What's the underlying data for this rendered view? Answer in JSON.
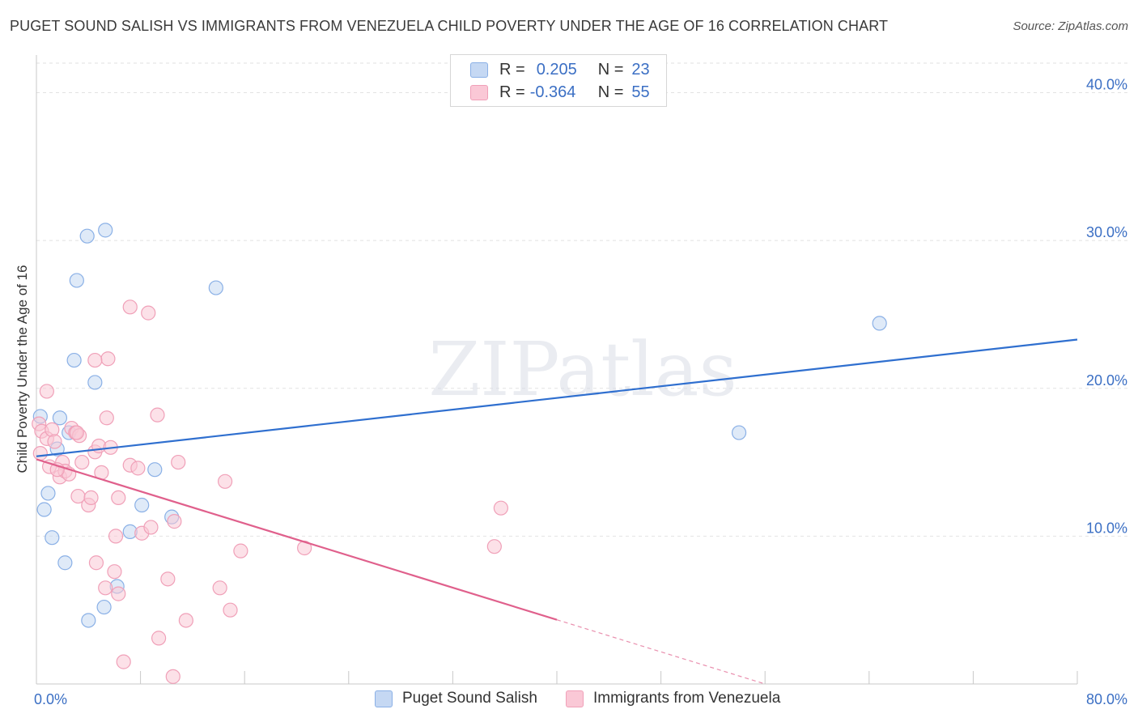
{
  "chart_data": {
    "type": "scatter",
    "title": "PUGET SOUND SALISH VS IMMIGRANTS FROM VENEZUELA CHILD POVERTY UNDER THE AGE OF 16 CORRELATION CHART",
    "source": "Source: ZipAtlas.com",
    "ylabel": "Child Poverty Under the Age of 16",
    "xlabel": "",
    "xlim": [
      0,
      80
    ],
    "ylim": [
      0,
      42
    ],
    "x_tick_labels": [
      "0.0%",
      "80.0%"
    ],
    "y_ticks": [
      10,
      20,
      30,
      40
    ],
    "y_tick_labels": [
      "10.0%",
      "20.0%",
      "30.0%",
      "40.0%"
    ],
    "watermark": "ZIPatlas",
    "legend": {
      "rows": [
        {
          "r_label": "R =",
          "r_value": "0.205",
          "n_label": "N =",
          "n_value": "23"
        },
        {
          "r_label": "R =",
          "r_value": "-0.364",
          "n_label": "N =",
          "n_value": "55"
        }
      ]
    },
    "series": [
      {
        "name": "Puget Sound Salish",
        "color": "#8ab0e6",
        "fill": "#c5d8f3",
        "line_color": "#2f6fcf",
        "trend": {
          "x0": 0,
          "y0": 15.4,
          "x1": 80,
          "y1": 23.3,
          "solid_until": 80
        },
        "points": [
          [
            0.3,
            18.1
          ],
          [
            1.8,
            18.0
          ],
          [
            2.5,
            17.0
          ],
          [
            1.6,
            15.9
          ],
          [
            0.9,
            12.9
          ],
          [
            0.6,
            11.8
          ],
          [
            1.2,
            9.9
          ],
          [
            2.2,
            8.2
          ],
          [
            3.1,
            27.3
          ],
          [
            2.9,
            21.9
          ],
          [
            4.5,
            20.4
          ],
          [
            3.9,
            30.3
          ],
          [
            5.3,
            30.7
          ],
          [
            9.1,
            14.5
          ],
          [
            8.1,
            12.1
          ],
          [
            10.4,
            11.3
          ],
          [
            7.2,
            10.3
          ],
          [
            6.2,
            6.6
          ],
          [
            5.2,
            5.2
          ],
          [
            4.0,
            4.3
          ],
          [
            13.8,
            26.8
          ],
          [
            64.8,
            24.4
          ],
          [
            54.0,
            17.0
          ]
        ]
      },
      {
        "name": "Immigrants from Venezuela",
        "color": "#f0a0b8",
        "fill": "#fac8d6",
        "line_color": "#e0608c",
        "trend": {
          "x0": 0,
          "y0": 15.2,
          "x1": 56,
          "y1": 0.0,
          "solid_until": 40
        },
        "points": [
          [
            0.2,
            17.6
          ],
          [
            0.4,
            17.1
          ],
          [
            0.3,
            15.6
          ],
          [
            0.8,
            16.6
          ],
          [
            1.2,
            17.2
          ],
          [
            1.4,
            16.4
          ],
          [
            1.0,
            14.7
          ],
          [
            1.8,
            14.0
          ],
          [
            2.0,
            15.0
          ],
          [
            2.2,
            14.4
          ],
          [
            2.5,
            14.2
          ],
          [
            2.7,
            17.3
          ],
          [
            3.0,
            17.0
          ],
          [
            3.3,
            16.8
          ],
          [
            3.5,
            15.0
          ],
          [
            3.2,
            12.7
          ],
          [
            0.8,
            19.8
          ],
          [
            4.0,
            12.1
          ],
          [
            4.2,
            12.6
          ],
          [
            4.5,
            15.7
          ],
          [
            4.8,
            16.1
          ],
          [
            5.0,
            14.3
          ],
          [
            5.4,
            18.0
          ],
          [
            5.7,
            16.0
          ],
          [
            6.3,
            12.6
          ],
          [
            5.5,
            22.0
          ],
          [
            4.5,
            21.9
          ],
          [
            7.2,
            25.5
          ],
          [
            8.6,
            25.1
          ],
          [
            7.2,
            14.8
          ],
          [
            7.8,
            14.6
          ],
          [
            8.1,
            10.2
          ],
          [
            8.8,
            10.6
          ],
          [
            9.3,
            18.2
          ],
          [
            10.6,
            11.0
          ],
          [
            10.9,
            15.0
          ],
          [
            6.1,
            10.0
          ],
          [
            4.6,
            8.2
          ],
          [
            6.0,
            7.6
          ],
          [
            5.3,
            6.5
          ],
          [
            6.3,
            6.1
          ],
          [
            10.1,
            7.1
          ],
          [
            11.5,
            4.3
          ],
          [
            9.4,
            3.1
          ],
          [
            6.7,
            1.5
          ],
          [
            10.5,
            0.5
          ],
          [
            14.5,
            13.7
          ],
          [
            15.7,
            9.0
          ],
          [
            14.1,
            6.5
          ],
          [
            14.9,
            5.0
          ],
          [
            20.6,
            9.2
          ],
          [
            35.7,
            11.9
          ],
          [
            35.2,
            9.3
          ],
          [
            3.1,
            17.0
          ],
          [
            1.6,
            14.5
          ]
        ]
      }
    ]
  }
}
